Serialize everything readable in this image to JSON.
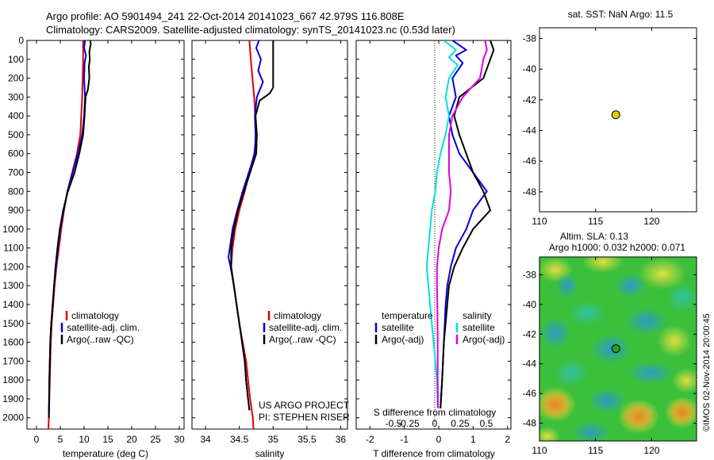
{
  "header": {
    "line1": "Argo profile: AO 5901494_241 22-Oct-2014 20141023_667 42.979S 116.808E",
    "line2": "Climatology: CARS2009. Satellite-adjusted climatology: synTS_20141023.nc (0.53d later)"
  },
  "credits": {
    "project": "US ARGO PROJECT",
    "pi": "PI: STEPHEN RISER",
    "imos": "©IMOS 02-Nov-2014 20:00:45"
  },
  "colors": {
    "climatology": "#e00000",
    "satellite": "#0000e0",
    "argo": "#000000",
    "satellite_s": "#00e0e0",
    "argo_s": "#e000e0"
  },
  "chart_data": [
    {
      "type": "line",
      "name": "temperature-profile",
      "xlabel": "temperature (deg C)",
      "ylabel": "",
      "xlim": [
        -2,
        31
      ],
      "ylim": [
        2060,
        0
      ],
      "xticks": [
        0,
        5,
        10,
        15,
        20,
        25,
        30
      ],
      "yticks": [
        0,
        100,
        200,
        300,
        400,
        500,
        600,
        700,
        800,
        900,
        1000,
        1100,
        1200,
        1300,
        1400,
        1500,
        1600,
        1700,
        1800,
        1900,
        2000
      ],
      "legend": [
        "climatology",
        "satellite-adj. clim.",
        "Argo(..raw -QC)"
      ],
      "series": [
        {
          "name": "climatology",
          "color": "#e00000",
          "points": [
            [
              9.8,
              0
            ],
            [
              9.8,
              100
            ],
            [
              9.6,
              300
            ],
            [
              9.2,
              500
            ],
            [
              8.5,
              600
            ],
            [
              7.5,
              700
            ],
            [
              6.5,
              800
            ],
            [
              5.8,
              900
            ],
            [
              5.2,
              1000
            ],
            [
              4.7,
              1100
            ],
            [
              4.2,
              1200
            ],
            [
              3.8,
              1300
            ],
            [
              3.5,
              1400
            ],
            [
              3.2,
              1500
            ],
            [
              3.0,
              1600
            ],
            [
              2.8,
              1800
            ],
            [
              2.6,
              2000
            ],
            [
              2.5,
              2060
            ]
          ]
        },
        {
          "name": "satellite-adj. clim.",
          "color": "#0000e0",
          "points": [
            [
              10.2,
              0
            ],
            [
              10.0,
              40
            ],
            [
              10.4,
              80
            ],
            [
              10.1,
              120
            ],
            [
              10.0,
              200
            ],
            [
              10.2,
              300
            ],
            [
              10.0,
              400
            ],
            [
              9.6,
              500
            ],
            [
              8.7,
              600
            ],
            [
              7.6,
              700
            ],
            [
              6.5,
              800
            ],
            [
              5.7,
              900
            ],
            [
              5.0,
              1000
            ],
            [
              4.5,
              1100
            ],
            [
              4.1,
              1200
            ],
            [
              3.7,
              1300
            ],
            [
              3.4,
              1400
            ],
            [
              3.1,
              1500
            ],
            [
              2.9,
              1600
            ],
            [
              2.7,
              1800
            ],
            [
              2.6,
              2000
            ]
          ]
        },
        {
          "name": "Argo(..raw -QC)",
          "color": "#000000",
          "points": [
            [
              11.3,
              0
            ],
            [
              11.4,
              20
            ],
            [
              11.1,
              60
            ],
            [
              11.2,
              100
            ],
            [
              11.0,
              140
            ],
            [
              11.1,
              200
            ],
            [
              10.8,
              260
            ],
            [
              10.3,
              300
            ],
            [
              10.1,
              400
            ],
            [
              9.8,
              500
            ],
            [
              9.0,
              600
            ],
            [
              8.0,
              700
            ],
            [
              6.6,
              800
            ],
            [
              5.6,
              900
            ],
            [
              4.9,
              1000
            ],
            [
              4.4,
              1100
            ],
            [
              4.0,
              1200
            ],
            [
              3.7,
              1300
            ],
            [
              3.4,
              1400
            ],
            [
              3.1,
              1500
            ],
            [
              2.9,
              1600
            ],
            [
              2.7,
              1800
            ],
            [
              2.6,
              2000
            ]
          ]
        }
      ]
    },
    {
      "type": "line",
      "name": "salinity-profile",
      "xlabel": "salinity",
      "xlim": [
        33.8,
        36.1
      ],
      "ylim": [
        2060,
        0
      ],
      "xticks": [
        34,
        34.5,
        35,
        35.5,
        36
      ],
      "legend": [
        "climatology",
        "satellite-adj. clim.",
        "Argo(..raw -QC)"
      ],
      "series": [
        {
          "name": "climatology",
          "color": "#e00000",
          "points": [
            [
              34.65,
              0
            ],
            [
              34.67,
              100
            ],
            [
              34.72,
              300
            ],
            [
              34.75,
              500
            ],
            [
              34.72,
              600
            ],
            [
              34.65,
              700
            ],
            [
              34.58,
              800
            ],
            [
              34.5,
              900
            ],
            [
              34.44,
              1000
            ],
            [
              34.4,
              1100
            ],
            [
              34.38,
              1200
            ],
            [
              34.42,
              1300
            ],
            [
              34.46,
              1400
            ],
            [
              34.5,
              1500
            ],
            [
              34.55,
              1600
            ],
            [
              34.6,
              1700
            ],
            [
              34.63,
              1800
            ],
            [
              34.66,
              1900
            ],
            [
              34.7,
              2000
            ],
            [
              34.71,
              2060
            ]
          ]
        },
        {
          "name": "satellite-adj. clim.",
          "color": "#0000e0",
          "points": [
            [
              34.79,
              0
            ],
            [
              34.75,
              40
            ],
            [
              34.82,
              100
            ],
            [
              34.78,
              160
            ],
            [
              34.85,
              220
            ],
            [
              34.76,
              300
            ],
            [
              34.73,
              400
            ],
            [
              34.74,
              500
            ],
            [
              34.73,
              600
            ],
            [
              34.64,
              700
            ],
            [
              34.55,
              800
            ],
            [
              34.47,
              900
            ],
            [
              34.4,
              1000
            ],
            [
              34.36,
              1100
            ],
            [
              34.34,
              1150
            ],
            [
              34.37,
              1200
            ],
            [
              34.42,
              1300
            ],
            [
              34.46,
              1400
            ],
            [
              34.5,
              1500
            ],
            [
              34.54,
              1600
            ],
            [
              34.58,
              1700
            ],
            [
              34.6,
              1800
            ],
            [
              34.63,
              1900
            ],
            [
              34.65,
              1960
            ]
          ]
        },
        {
          "name": "Argo(..raw -QC)",
          "color": "#000000",
          "points": [
            [
              35.0,
              0
            ],
            [
              35.0,
              100
            ],
            [
              35.0,
              250
            ],
            [
              34.95,
              280
            ],
            [
              34.8,
              320
            ],
            [
              34.74,
              400
            ],
            [
              34.76,
              500
            ],
            [
              34.75,
              600
            ],
            [
              34.66,
              700
            ],
            [
              34.57,
              800
            ],
            [
              34.48,
              900
            ],
            [
              34.42,
              1000
            ],
            [
              34.38,
              1100
            ],
            [
              34.38,
              1200
            ],
            [
              34.42,
              1300
            ],
            [
              34.46,
              1400
            ],
            [
              34.5,
              1500
            ],
            [
              34.54,
              1600
            ],
            [
              34.58,
              1700
            ],
            [
              34.6,
              1800
            ],
            [
              34.63,
              1900
            ],
            [
              34.65,
              1960
            ]
          ]
        }
      ]
    },
    {
      "type": "line",
      "name": "difference-profile",
      "xlabel": "T difference from climatology",
      "xlabel2": "S difference from climatology",
      "xlim": [
        -2.4,
        2.1
      ],
      "ylim": [
        2060,
        0
      ],
      "xticks": [
        -2,
        -1,
        0,
        1,
        2
      ],
      "xticks2": [
        -0.5,
        -0.25,
        0,
        0.25,
        0.5
      ],
      "legend_headers": [
        "temperature",
        "salinity"
      ],
      "legend": [
        "satellite",
        "Argo(-adj)"
      ],
      "series": [
        {
          "name": "satellite-T",
          "color": "#0000e0",
          "points": [
            [
              0.4,
              0
            ],
            [
              0.8,
              50
            ],
            [
              0.5,
              80
            ],
            [
              0.7,
              120
            ],
            [
              0.4,
              200
            ],
            [
              0.5,
              300
            ],
            [
              0.3,
              400
            ],
            [
              0.4,
              500
            ],
            [
              0.6,
              600
            ],
            [
              1.0,
              700
            ],
            [
              1.4,
              800
            ],
            [
              1.0,
              900
            ],
            [
              0.8,
              1000
            ],
            [
              0.5,
              1100
            ],
            [
              0.35,
              1200
            ],
            [
              0.25,
              1300
            ],
            [
              0.2,
              1400
            ],
            [
              0.15,
              1600
            ],
            [
              0.1,
              1800
            ],
            [
              0.05,
              1950
            ]
          ]
        },
        {
          "name": "Argo-T",
          "color": "#000000",
          "points": [
            [
              1.5,
              0
            ],
            [
              1.6,
              50
            ],
            [
              1.5,
              100
            ],
            [
              1.3,
              200
            ],
            [
              0.6,
              300
            ],
            [
              0.45,
              400
            ],
            [
              0.6,
              500
            ],
            [
              0.8,
              600
            ],
            [
              1.0,
              700
            ],
            [
              1.3,
              800
            ],
            [
              1.5,
              900
            ],
            [
              1.0,
              1000
            ],
            [
              0.7,
              1100
            ],
            [
              0.45,
              1200
            ],
            [
              0.3,
              1300
            ],
            [
              0.25,
              1400
            ],
            [
              0.2,
              1500
            ],
            [
              0.15,
              1600
            ],
            [
              0.1,
              1800
            ],
            [
              0.05,
              1950
            ]
          ]
        },
        {
          "name": "satellite-S",
          "color": "#00e0e0",
          "points": [
            [
              0.15,
              0
            ],
            [
              0.5,
              50
            ],
            [
              0.3,
              90
            ],
            [
              0.55,
              130
            ],
            [
              0.3,
              200
            ],
            [
              0.2,
              300
            ],
            [
              0.3,
              400
            ],
            [
              0.2,
              500
            ],
            [
              0.05,
              600
            ],
            [
              -0.05,
              700
            ],
            [
              -0.1,
              800
            ],
            [
              -0.2,
              900
            ],
            [
              -0.25,
              1000
            ],
            [
              -0.3,
              1100
            ],
            [
              -0.35,
              1200
            ],
            [
              -0.3,
              1300
            ],
            [
              -0.25,
              1400
            ],
            [
              -0.2,
              1500
            ],
            [
              -0.15,
              1600
            ],
            [
              -0.1,
              1700
            ],
            [
              -0.05,
              1800
            ],
            [
              -0.03,
              1950
            ]
          ]
        },
        {
          "name": "Argo-S",
          "color": "#e000e0",
          "points": [
            [
              1.35,
              0
            ],
            [
              1.4,
              50
            ],
            [
              1.3,
              100
            ],
            [
              1.2,
              200
            ],
            [
              0.7,
              300
            ],
            [
              0.4,
              400
            ],
            [
              0.3,
              500
            ],
            [
              0.3,
              600
            ],
            [
              0.3,
              700
            ],
            [
              0.35,
              800
            ],
            [
              0.3,
              900
            ],
            [
              0.1,
              1000
            ],
            [
              0.0,
              1100
            ],
            [
              -0.05,
              1200
            ],
            [
              -0.05,
              1300
            ],
            [
              -0.04,
              1400
            ],
            [
              -0.03,
              1600
            ],
            [
              -0.03,
              1800
            ],
            [
              -0.02,
              1950
            ]
          ]
        }
      ]
    },
    {
      "type": "scatter",
      "name": "sst-location-map",
      "title": "sat. SST: NaN Argo: 11.5",
      "xlim": [
        110,
        124
      ],
      "ylim": [
        -49.3,
        -37.3
      ],
      "xticks": [
        110,
        115,
        120
      ],
      "yticks": [
        -38,
        -40,
        -42,
        -44,
        -46,
        -48
      ],
      "point": {
        "lon": 116.808,
        "lat": -42.979,
        "color": "#e0d000"
      }
    },
    {
      "type": "heatmap",
      "name": "sla-map",
      "title": "Altim. SLA: 0.13",
      "subtitle": "Argo h1000: 0.032 h2000: 0.071",
      "xlim": [
        110,
        124
      ],
      "ylim": [
        -49.2,
        -36.8
      ],
      "xticks": [
        110,
        115,
        120
      ],
      "yticks": [
        -38,
        -40,
        -42,
        -44,
        -46,
        -48
      ],
      "point": {
        "lon": 116.808,
        "lat": -42.979,
        "color": "#20a020"
      }
    }
  ]
}
